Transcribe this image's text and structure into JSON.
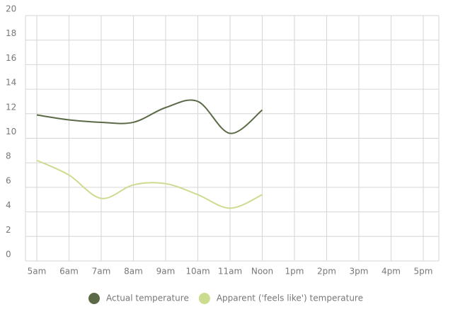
{
  "chart_data": {
    "type": "line",
    "categories": [
      "5am",
      "6am",
      "7am",
      "8am",
      "9am",
      "10am",
      "11am",
      "Noon",
      "1pm",
      "2pm",
      "3pm",
      "4pm",
      "5pm"
    ],
    "series": [
      {
        "name": "Actual temperature",
        "color": "#5b6a46",
        "values": [
          11.9,
          11.5,
          11.3,
          11.3,
          12.5,
          13.0,
          10.4,
          12.3,
          null,
          null,
          null,
          null,
          null
        ]
      },
      {
        "name": "Apparent ('feels like') temperature",
        "color": "#cbdc8e",
        "values": [
          8.2,
          7.0,
          5.1,
          6.2,
          6.3,
          5.4,
          4.3,
          5.4,
          null,
          null,
          null,
          null,
          null
        ]
      }
    ],
    "ylim": [
      0,
      20
    ],
    "yticks": [
      0,
      2,
      4,
      6,
      8,
      10,
      12,
      14,
      16,
      18,
      20
    ],
    "grid": true,
    "legend": "bottom"
  }
}
